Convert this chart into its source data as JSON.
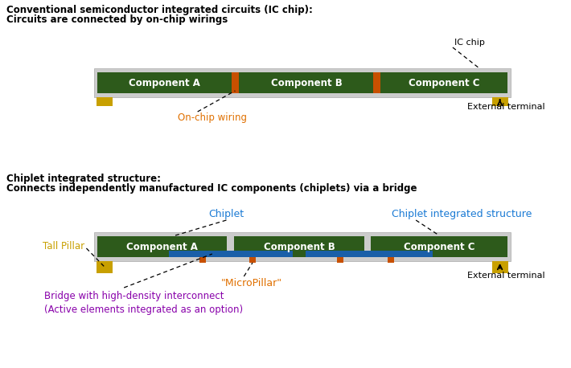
{
  "bg_color": "#ffffff",
  "title1_line1": "Conventional semiconductor integrated circuits (IC chip):",
  "title1_line2": "Circuits are connected by on-chip wirings",
  "title2_line1": "Chiplet integrated structure:",
  "title2_line2": "Connects independently manufactured IC components (chiplets) via a bridge",
  "ic_board_color": "#cccccc",
  "component_color": "#2d5a1b",
  "connector_color": "#c85000",
  "terminal_color": "#c8a000",
  "bridge_color": "#1a5fa8",
  "component_label_A": "Component A",
  "component_label_B": "Component B",
  "component_label_C": "Component C",
  "annotation_ic_chip": "IC chip",
  "annotation_on_chip_wiring": "On-chip wiring",
  "annotation_external_terminal_1": "External terminal",
  "annotation_chiplet": "Chiplet",
  "annotation_chiplet_integrated": "Chiplet integrated structure",
  "annotation_tall_pillar": "Tall Pillar",
  "annotation_micropillar": "\"MicroPillar\"",
  "annotation_bridge": "Bridge with high-density interconnect\n(Active elements integrated as an option)",
  "annotation_external_terminal_2": "External terminal",
  "color_orange": "#e07000",
  "color_blue": "#1a7ad4",
  "color_purple": "#8800aa",
  "color_black": "#000000",
  "color_gold": "#c8a000"
}
